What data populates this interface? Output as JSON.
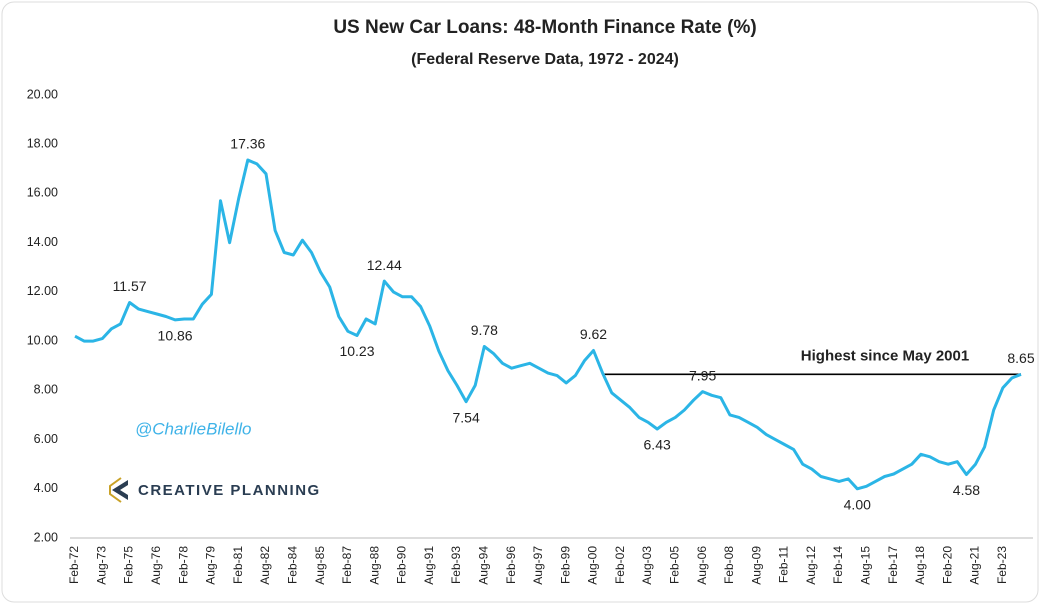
{
  "chart_data": {
    "type": "line",
    "title": "US New Car Loans: 48-Month Finance Rate (%)",
    "subtitle": "(Federal Reserve Data, 1972 - 2024)",
    "annotation": "Highest since May 2001",
    "watermark": "@CharlieBilello",
    "logo_text": "CREATIVE PLANNING",
    "categories": [
      "Feb-72",
      null,
      null,
      "Aug-73",
      null,
      null,
      "Feb-75",
      null,
      null,
      "Aug-76",
      null,
      null,
      "Feb-78",
      null,
      null,
      "Aug-79",
      null,
      null,
      "Feb-81",
      null,
      null,
      "Aug-82",
      null,
      null,
      "Feb-84",
      null,
      null,
      "Aug-85",
      null,
      null,
      "Feb-87",
      null,
      null,
      "Aug-88",
      null,
      null,
      "Feb-90",
      null,
      null,
      "Aug-91",
      null,
      null,
      "Feb-93",
      null,
      null,
      "Aug-94",
      null,
      null,
      "Feb-96",
      null,
      null,
      "Aug-97",
      null,
      null,
      "Feb-99",
      null,
      null,
      "Aug-00",
      null,
      null,
      "Feb-02",
      null,
      null,
      "Aug-03",
      null,
      null,
      "Feb-05",
      null,
      null,
      "Aug-06",
      null,
      null,
      "Feb-08",
      null,
      null,
      "Aug-09",
      null,
      null,
      "Feb-11",
      null,
      null,
      "Aug-12",
      null,
      null,
      "Feb-14",
      null,
      null,
      "Aug-15",
      null,
      null,
      "Feb-17",
      null,
      null,
      "Aug-18",
      null,
      null,
      "Feb-20",
      null,
      null,
      "Aug-21",
      null,
      null,
      "Feb-23",
      null,
      null
    ],
    "series": [
      {
        "name": "48-Month Finance Rate",
        "color": "#2bb5e6",
        "values": [
          10.2,
          10.0,
          10.0,
          10.1,
          10.5,
          10.7,
          11.57,
          11.3,
          11.2,
          11.1,
          11.0,
          10.86,
          10.9,
          10.9,
          11.5,
          11.9,
          15.7,
          14.0,
          15.8,
          17.36,
          17.2,
          16.8,
          14.5,
          13.6,
          13.5,
          14.1,
          13.6,
          12.8,
          12.2,
          11.0,
          10.4,
          10.23,
          10.9,
          10.7,
          12.44,
          12.0,
          11.8,
          11.8,
          11.4,
          10.6,
          9.6,
          8.8,
          8.2,
          7.54,
          8.2,
          9.78,
          9.5,
          9.1,
          8.9,
          9.0,
          9.1,
          8.9,
          8.7,
          8.6,
          8.3,
          8.6,
          9.2,
          9.62,
          8.7,
          7.9,
          7.6,
          7.3,
          6.9,
          6.7,
          6.43,
          6.7,
          6.9,
          7.2,
          7.6,
          7.95,
          7.8,
          7.7,
          7.0,
          6.9,
          6.7,
          6.5,
          6.2,
          6.0,
          5.8,
          5.6,
          5.0,
          4.8,
          4.5,
          4.4,
          4.3,
          4.4,
          4.0,
          4.1,
          4.3,
          4.5,
          4.6,
          4.8,
          5.0,
          5.4,
          5.3,
          5.1,
          5.0,
          5.1,
          4.58,
          5.0,
          5.7,
          7.2,
          8.1,
          8.5,
          8.65
        ],
        "value_labels": [
          null,
          null,
          null,
          null,
          null,
          null,
          "11.57",
          null,
          null,
          null,
          null,
          "10.86",
          null,
          null,
          null,
          null,
          null,
          null,
          null,
          "17.36",
          null,
          null,
          null,
          null,
          null,
          null,
          null,
          null,
          null,
          null,
          null,
          "10.23",
          null,
          null,
          "12.44",
          null,
          null,
          null,
          null,
          null,
          null,
          null,
          null,
          "7.54",
          null,
          "9.78",
          null,
          null,
          null,
          null,
          null,
          null,
          null,
          null,
          null,
          null,
          null,
          "9.62",
          null,
          null,
          null,
          null,
          null,
          null,
          "6.43",
          null,
          null,
          null,
          null,
          "7.95",
          null,
          null,
          null,
          null,
          null,
          null,
          null,
          null,
          null,
          null,
          null,
          null,
          null,
          null,
          null,
          null,
          "4.00",
          null,
          null,
          null,
          null,
          null,
          null,
          null,
          null,
          null,
          null,
          null,
          "4.58",
          null,
          null,
          null,
          null,
          null,
          "8.65"
        ]
      }
    ],
    "ylim": [
      2,
      20
    ],
    "yticks": [
      {
        "value": 2,
        "label": "2.00"
      },
      {
        "value": 4,
        "label": "4.00"
      },
      {
        "value": 6,
        "label": "6.00"
      },
      {
        "value": 8,
        "label": "8.00"
      },
      {
        "value": 10,
        "label": "10.00"
      },
      {
        "value": 12,
        "label": "12.00"
      },
      {
        "value": 14,
        "label": "14.00"
      },
      {
        "value": 16,
        "label": "16.00"
      },
      {
        "value": 18,
        "label": "18.00"
      },
      {
        "value": 20,
        "label": "20.00"
      }
    ],
    "grid": false
  }
}
